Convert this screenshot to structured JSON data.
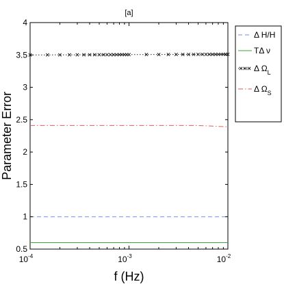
{
  "chart_data": {
    "type": "line",
    "title": "[a]",
    "xlabel": "f (Hz)",
    "ylabel": "Parameter Error",
    "xscale": "log",
    "xlim": [
      0.0001,
      0.01
    ],
    "ylim": [
      0.5,
      4
    ],
    "xticks": [
      {
        "value": 0.0001,
        "base": "10",
        "exp": "-4"
      },
      {
        "value": 0.001,
        "base": "10",
        "exp": "-3"
      },
      {
        "value": 0.01,
        "base": "10",
        "exp": "-2"
      }
    ],
    "yticks": [
      {
        "value": 0.5,
        "label": "0.5"
      },
      {
        "value": 1,
        "label": "1"
      },
      {
        "value": 1.5,
        "label": "1.5"
      },
      {
        "value": 2,
        "label": "2"
      },
      {
        "value": 2.5,
        "label": "2.5"
      },
      {
        "value": 3,
        "label": "3"
      },
      {
        "value": 3.5,
        "label": "3.5"
      },
      {
        "value": 4,
        "label": "4"
      }
    ],
    "grid": false,
    "legend_position": "outside-top-right",
    "series": [
      {
        "name_main": "Δ H/H",
        "name_sub": "",
        "color": "#6f8fe6",
        "style": "dashed",
        "marker": "none",
        "x": [
          0.0001,
          0.01
        ],
        "y": [
          1.0,
          1.0
        ]
      },
      {
        "name_main": "TΔ ν",
        "name_sub": "",
        "color": "#3aa63a",
        "style": "solid",
        "marker": "none",
        "x": [
          0.0001,
          0.01
        ],
        "y": [
          0.6,
          0.6
        ]
      },
      {
        "name_main": "Δ Ω",
        "name_sub": "L",
        "color": "#222222",
        "style": "dotted",
        "marker": "x",
        "x": [
          0.0001,
          0.01
        ],
        "y": [
          3.5,
          3.51
        ],
        "marker_x": [
          0.0001,
          0.00015,
          0.0002,
          0.00025,
          0.0003,
          0.00035,
          0.0004,
          0.00045,
          0.0005,
          0.00055,
          0.0006,
          0.00065,
          0.0007,
          0.00075,
          0.0008,
          0.00085,
          0.0009,
          0.00095,
          0.001,
          0.0015,
          0.002,
          0.0025,
          0.003,
          0.0035,
          0.004,
          0.0045,
          0.005,
          0.0055,
          0.006,
          0.0065,
          0.007,
          0.0075,
          0.008,
          0.0085,
          0.009,
          0.0095,
          0.01
        ]
      },
      {
        "name_main": "Δ Ω",
        "name_sub": "S",
        "color": "#e65a5a",
        "style": "dashdot",
        "marker": "none",
        "x": [
          0.0001,
          0.001,
          0.005,
          0.007,
          0.01
        ],
        "y": [
          2.41,
          2.41,
          2.41,
          2.4,
          2.39
        ]
      }
    ]
  }
}
